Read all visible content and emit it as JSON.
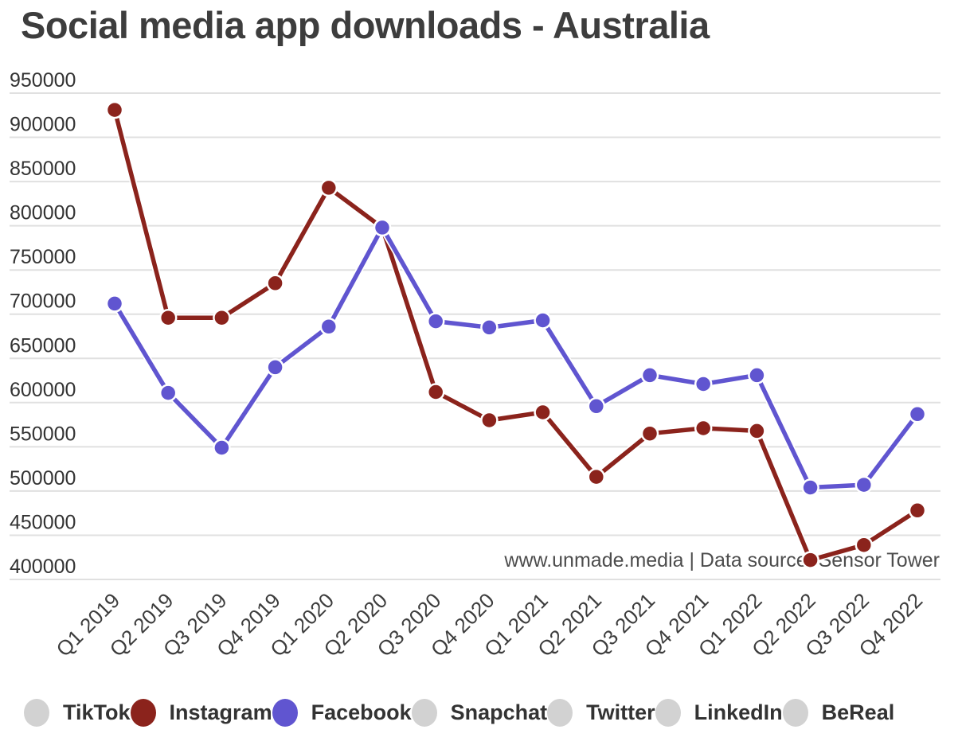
{
  "title": "Social media app downloads - Australia",
  "watermark": "www.unmade.media | Data source: Sensor Tower",
  "colors": {
    "instagram": "#8b231c",
    "facebook": "#6055d0",
    "inactive_legend": "#d2d2d2",
    "gridline": "#e0e0e0",
    "axis_text": "#333333",
    "title_text": "#3d3d3d"
  },
  "legend": {
    "items": [
      {
        "label": "TikTok",
        "color": "#d2d2d2",
        "active": false
      },
      {
        "label": "Instagram",
        "color": "#8b231c",
        "active": true
      },
      {
        "label": "Facebook",
        "color": "#6055d0",
        "active": true
      },
      {
        "label": "Snapchat",
        "color": "#d2d2d2",
        "active": false
      },
      {
        "label": "Twitter",
        "color": "#d2d2d2",
        "active": false
      },
      {
        "label": "LinkedIn",
        "color": "#d2d2d2",
        "active": false
      },
      {
        "label": "BeReal",
        "color": "#d2d2d2",
        "active": false
      }
    ]
  },
  "chart_data": {
    "type": "line",
    "title": "Social media app downloads - Australia",
    "xlabel": "",
    "ylabel": "",
    "ylim": [
      400000,
      950000
    ],
    "yticks": [
      400000,
      450000,
      500000,
      550000,
      600000,
      650000,
      700000,
      750000,
      800000,
      850000,
      900000,
      950000
    ],
    "grid": "horizontal",
    "legend_position": "bottom",
    "x_tick_rotation": -45,
    "categories": [
      "Q1 2019",
      "Q2 2019",
      "Q3 2019",
      "Q4 2019",
      "Q1 2020",
      "Q2 2020",
      "Q3 2020",
      "Q4 2020",
      "Q1 2021",
      "Q2 2021",
      "Q3 2021",
      "Q4 2021",
      "Q1 2022",
      "Q2 2022",
      "Q3 2022",
      "Q4 2022"
    ],
    "series": [
      {
        "name": "Instagram",
        "color": "#8b231c",
        "values": [
          931000,
          696000,
          696000,
          735000,
          843000,
          798000,
          612000,
          580000,
          589000,
          516000,
          565000,
          571000,
          568000,
          422000,
          439000,
          478000
        ]
      },
      {
        "name": "Facebook",
        "color": "#6055d0",
        "values": [
          712000,
          611000,
          549000,
          640000,
          686000,
          798000,
          692000,
          685000,
          693000,
          596000,
          631000,
          621000,
          631000,
          504000,
          507000,
          587000
        ]
      }
    ],
    "inactive_series": [
      "TikTok",
      "Snapchat",
      "Twitter",
      "LinkedIn",
      "BeReal"
    ]
  }
}
